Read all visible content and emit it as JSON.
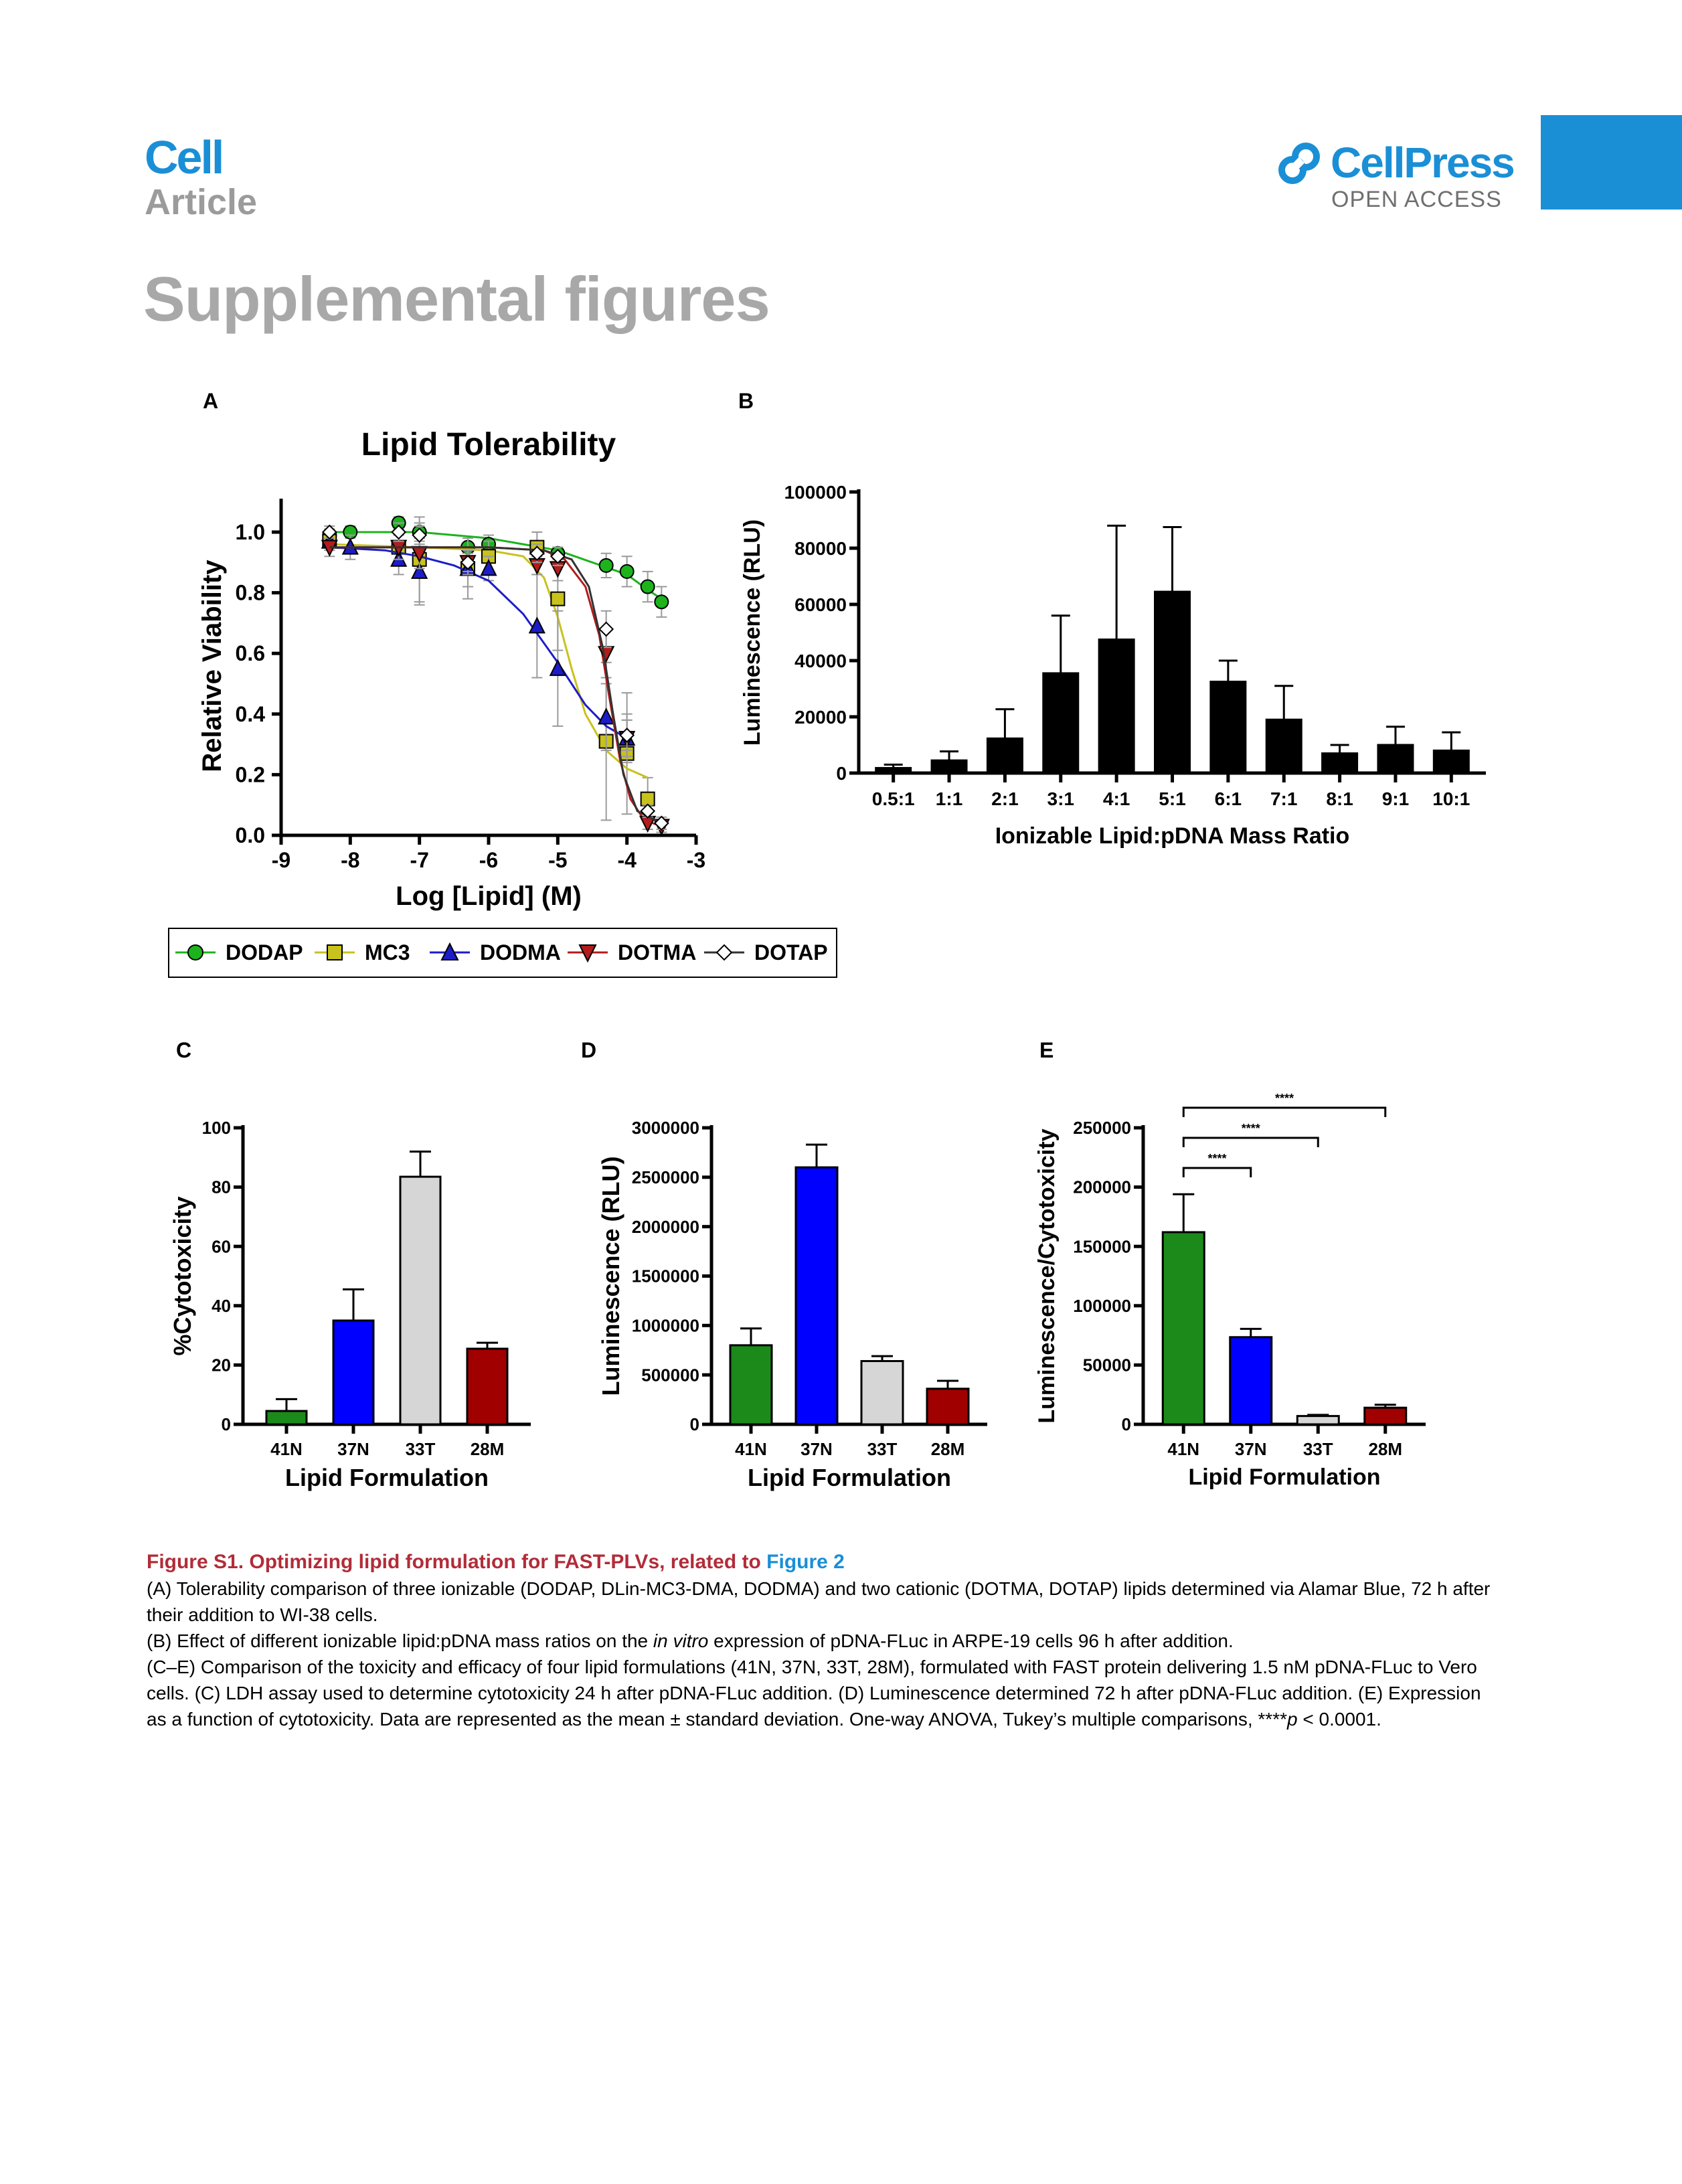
{
  "header": {
    "journal": "Cell",
    "section": "Article",
    "brand": "CellPress",
    "brand_sub": "OPEN ACCESS",
    "page_title": "Supplemental figures"
  },
  "colors": {
    "brand_blue": "#1a8fd6",
    "caption_red": "#b22c39",
    "title_gray": "#a8a8a8"
  },
  "panel_labels": [
    "A",
    "B",
    "C",
    "D",
    "E"
  ],
  "chart_data": [
    {
      "panel": "A",
      "type": "scatter",
      "title": "Lipid Tolerability",
      "xlabel": "Log [Lipid] (M)",
      "ylabel": "Relative Viability",
      "xlim": [
        -9,
        -3
      ],
      "ylim": [
        0,
        1.0
      ],
      "xticks": [
        -9,
        -8,
        -7,
        -6,
        -5,
        -4,
        -3
      ],
      "yticks": [
        0.0,
        0.2,
        0.4,
        0.6,
        0.8,
        1.0
      ],
      "legend_position": "below",
      "series": [
        {
          "name": "DODAP",
          "color": "#1db31d",
          "marker": "circle",
          "x": [
            -8.3,
            -8.0,
            -7.3,
            -7.0,
            -6.3,
            -6.0,
            -5.3,
            -5.0,
            -4.3,
            -4.0,
            -3.7,
            -3.5
          ],
          "y": [
            0.99,
            1.0,
            1.03,
            1.0,
            0.95,
            0.96,
            0.94,
            0.93,
            0.89,
            0.87,
            0.82,
            0.77
          ],
          "err": [
            0.02,
            0.02,
            0.02,
            0.03,
            0.03,
            0.03,
            0.02,
            0.02,
            0.04,
            0.05,
            0.05,
            0.05
          ],
          "fit": [
            [
              -8.3,
              1.0
            ],
            [
              -7,
              1.0
            ],
            [
              -6,
              0.98
            ],
            [
              -5,
              0.94
            ],
            [
              -4.5,
              0.9
            ],
            [
              -4,
              0.86
            ],
            [
              -3.7,
              0.81
            ],
            [
              -3.5,
              0.78
            ]
          ]
        },
        {
          "name": "MC3",
          "color": "#c8c21c",
          "marker": "square",
          "x": [
            -8.3,
            -7.3,
            -7.0,
            -6.3,
            -6.0,
            -5.3,
            -5.0,
            -4.3,
            -4.0,
            -3.7
          ],
          "y": [
            0.97,
            0.95,
            0.91,
            0.88,
            0.92,
            0.95,
            0.78,
            0.31,
            0.27,
            0.12
          ],
          "err": [
            0.03,
            0.06,
            0.14,
            0.1,
            0.05,
            0.05,
            0.17,
            0.26,
            0.2,
            0.07
          ],
          "fit": [
            [
              -8.3,
              0.96
            ],
            [
              -7,
              0.95
            ],
            [
              -6,
              0.94
            ],
            [
              -5.5,
              0.92
            ],
            [
              -5.2,
              0.85
            ],
            [
              -5.0,
              0.72
            ],
            [
              -4.8,
              0.55
            ],
            [
              -4.6,
              0.4
            ],
            [
              -4.3,
              0.28
            ],
            [
              -4.0,
              0.22
            ],
            [
              -3.7,
              0.19
            ]
          ]
        },
        {
          "name": "DODMA",
          "color": "#1c1cc8",
          "marker": "triangle-up",
          "x": [
            -8.3,
            -8.0,
            -7.3,
            -7.0,
            -6.3,
            -6.0,
            -5.3,
            -5.0,
            -4.3,
            -4.0
          ],
          "y": [
            0.97,
            0.95,
            0.91,
            0.87,
            0.88,
            0.88,
            0.69,
            0.55,
            0.39,
            0.32
          ],
          "err": [
            0.03,
            0.04,
            0.05,
            0.11,
            0.06,
            0.04,
            0.17,
            0.19,
            0.11,
            0.08
          ],
          "fit": [
            [
              -8.3,
              0.95
            ],
            [
              -7.5,
              0.94
            ],
            [
              -7,
              0.92
            ],
            [
              -6.5,
              0.89
            ],
            [
              -6,
              0.84
            ],
            [
              -5.5,
              0.73
            ],
            [
              -5.0,
              0.57
            ],
            [
              -4.6,
              0.43
            ],
            [
              -4.3,
              0.36
            ],
            [
              -4.0,
              0.32
            ]
          ]
        },
        {
          "name": "DOTMA",
          "color": "#b21c1c",
          "marker": "triangle-down",
          "x": [
            -8.3,
            -7.3,
            -7.0,
            -6.3,
            -5.3,
            -5.0,
            -4.3,
            -4.0,
            -3.7,
            -3.5
          ],
          "y": [
            0.95,
            0.95,
            0.93,
            0.9,
            0.89,
            0.88,
            0.6,
            0.32,
            0.04,
            0.03
          ],
          "err": [
            0.03,
            0.04,
            0.05,
            0.04,
            0.03,
            0.04,
            0.08,
            0.06,
            0.02,
            0.02
          ],
          "fit": [
            [
              -8.3,
              0.95
            ],
            [
              -6,
              0.95
            ],
            [
              -5.2,
              0.94
            ],
            [
              -4.9,
              0.91
            ],
            [
              -4.6,
              0.82
            ],
            [
              -4.4,
              0.66
            ],
            [
              -4.25,
              0.45
            ],
            [
              -4.1,
              0.25
            ],
            [
              -3.95,
              0.12
            ],
            [
              -3.75,
              0.05
            ],
            [
              -3.5,
              0.03
            ]
          ]
        },
        {
          "name": "DOTAP",
          "color": "#333333",
          "marker": "diamond-open",
          "x": [
            -8.3,
            -7.3,
            -7.0,
            -6.3,
            -5.3,
            -5.0,
            -4.3,
            -4.0,
            -3.7,
            -3.5
          ],
          "y": [
            1.0,
            1.0,
            0.99,
            0.9,
            0.93,
            0.92,
            0.68,
            0.33,
            0.08,
            0.04
          ],
          "err": [
            0.02,
            0.03,
            0.03,
            0.03,
            0.03,
            0.03,
            0.06,
            0.05,
            0.02,
            0.02
          ],
          "fit": [
            [
              -8.3,
              0.95
            ],
            [
              -6,
              0.95
            ],
            [
              -5.2,
              0.94
            ],
            [
              -4.8,
              0.91
            ],
            [
              -4.55,
              0.82
            ],
            [
              -4.35,
              0.62
            ],
            [
              -4.2,
              0.4
            ],
            [
              -4.05,
              0.2
            ],
            [
              -3.85,
              0.08
            ],
            [
              -3.5,
              0.04
            ]
          ]
        }
      ]
    },
    {
      "panel": "B",
      "type": "bar",
      "xlabel": "Ionizable Lipid:pDNA Mass Ratio",
      "ylabel": "Luminescence (RLU)",
      "ylim": [
        0,
        100000
      ],
      "yticks": [
        0,
        20000,
        40000,
        60000,
        80000,
        100000
      ],
      "categories": [
        "0.5:1",
        "1:1",
        "2:1",
        "3:1",
        "4:1",
        "5:1",
        "6:1",
        "7:1",
        "8:1",
        "9:1",
        "10:1"
      ],
      "values": [
        1800,
        4500,
        12300,
        35500,
        47500,
        64500,
        32500,
        19000,
        7000,
        10000,
        8000
      ],
      "err": [
        1200,
        3200,
        10400,
        20500,
        40500,
        23000,
        7500,
        12000,
        3000,
        6500,
        6500
      ],
      "colors": [
        "#000000"
      ]
    },
    {
      "panel": "C",
      "type": "bar",
      "xlabel": "Lipid Formulation",
      "ylabel": "%Cytotoxicity",
      "ylim": [
        0,
        100
      ],
      "yticks": [
        0,
        20,
        40,
        60,
        80,
        100
      ],
      "categories": [
        "41N",
        "37N",
        "33T",
        "28M"
      ],
      "values": [
        4.5,
        35,
        83.5,
        25.5
      ],
      "err": [
        4,
        10.5,
        8.5,
        2
      ],
      "colors": [
        "#1b8a1b",
        "#0000ff",
        "#d6d6d6",
        "#a00000"
      ]
    },
    {
      "panel": "D",
      "type": "bar",
      "xlabel": "Lipid Formulation",
      "ylabel": "Luminescence (RLU)",
      "ylim": [
        0,
        3000000
      ],
      "yticks": [
        0,
        500000,
        1000000,
        1500000,
        2000000,
        2500000,
        3000000
      ],
      "categories": [
        "41N",
        "37N",
        "33T",
        "28M"
      ],
      "values": [
        800000,
        2600000,
        640000,
        360000
      ],
      "err": [
        170000,
        230000,
        50000,
        80000
      ],
      "colors": [
        "#1b8a1b",
        "#0000ff",
        "#d6d6d6",
        "#a00000"
      ]
    },
    {
      "panel": "E",
      "type": "bar",
      "xlabel": "Lipid Formulation",
      "ylabel": "Luminescence/Cytotoxicity",
      "ylim": [
        0,
        250000
      ],
      "yticks": [
        0,
        50000,
        100000,
        150000,
        200000,
        250000
      ],
      "categories": [
        "41N",
        "37N",
        "33T",
        "28M"
      ],
      "values": [
        162000,
        73500,
        7000,
        14000
      ],
      "err": [
        32000,
        7000,
        1000,
        2500
      ],
      "colors": [
        "#1b8a1b",
        "#0000ff",
        "#d6d6d6",
        "#a00000"
      ],
      "significance": [
        {
          "from": "41N",
          "to": "37N",
          "label": "****"
        },
        {
          "from": "41N",
          "to": "33T",
          "label": "****"
        },
        {
          "from": "41N",
          "to": "28M",
          "label": "****"
        }
      ]
    }
  ],
  "caption": {
    "title": "Figure S1.  Optimizing lipid formulation for FAST-PLVs, related to ",
    "title_link": "Figure 2",
    "a": "(A) Tolerability comparison of three ionizable (DODAP, DLin-MC3-DMA, DODMA) and two cationic (DOTMA, DOTAP) lipids determined via Alamar Blue, 72 h after their addition to WI-38 cells.",
    "b_before": "(B) Effect of different ionizable lipid:pDNA mass ratios on the ",
    "b_italic": "in vitro",
    "b_after": " expression of pDNA-FLuc in ARPE-19 cells 96 h after addition.",
    "ce_before": "(C–E) Comparison of the toxicity and efficacy of four lipid formulations (41N, 37N, 33T, 28M), formulated with FAST protein delivering 1.5 nM pDNA-FLuc to Vero cells. (C) LDH assay used to determine cytotoxicity 24 h after pDNA-FLuc addition. (D) Luminescence determined 72 h after pDNA-FLuc addition. (E) Expression as a function of cytotoxicity. Data are represented as the mean ± standard deviation. One-way ANOVA, Tukey’s multiple comparisons, ****",
    "ce_italic": "p",
    "ce_after": " < 0.0001."
  }
}
